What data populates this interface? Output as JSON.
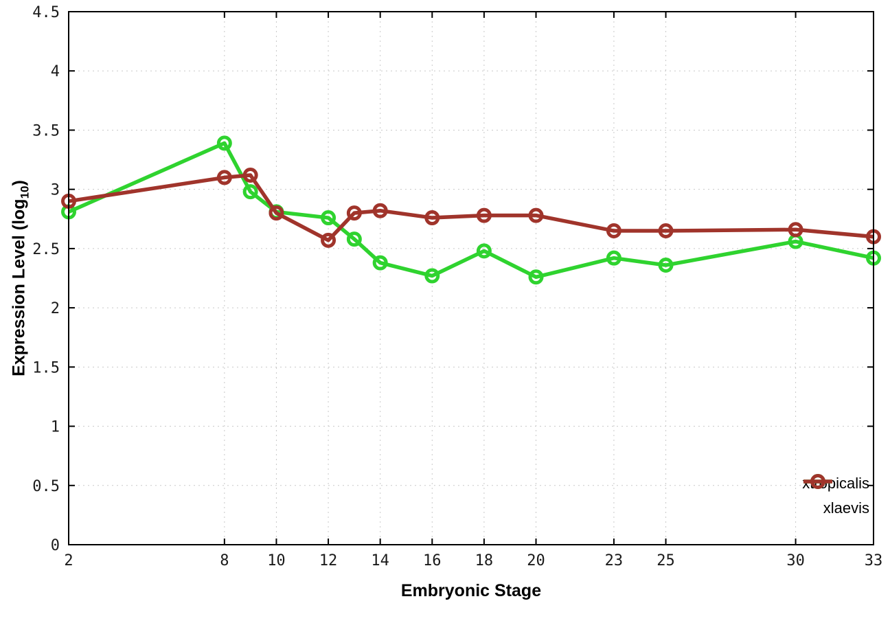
{
  "chart_data": {
    "type": "line",
    "title": "",
    "xlabel": "Embryonic Stage",
    "ylabel": "Expression Level (log10)",
    "ylabel_prefix": "Expression Level (log",
    "ylabel_subscript": "10",
    "ylabel_suffix": ")",
    "xlim": [
      2,
      33
    ],
    "ylim": [
      0,
      4.5
    ],
    "x_ticks": [
      2,
      8,
      10,
      12,
      14,
      16,
      18,
      20,
      23,
      25,
      30,
      33
    ],
    "y_ticks": [
      0,
      0.5,
      1,
      1.5,
      2,
      2.5,
      3,
      3.5,
      4,
      4.5
    ],
    "grid": true,
    "legend_position": "bottom-right",
    "x": [
      2,
      8,
      9,
      10,
      12,
      13,
      14,
      16,
      18,
      20,
      23,
      25,
      30,
      33
    ],
    "series": [
      {
        "name": "xtropicalis",
        "color": "#2fd32f",
        "values": [
          2.81,
          3.39,
          2.98,
          2.81,
          2.76,
          2.58,
          2.38,
          2.27,
          2.48,
          2.26,
          2.42,
          2.36,
          2.56,
          2.42
        ]
      },
      {
        "name": "xlaevis",
        "color": "#a0342b",
        "values": [
          2.9,
          3.1,
          3.12,
          2.8,
          2.57,
          2.8,
          2.82,
          2.76,
          2.78,
          2.78,
          2.65,
          2.65,
          2.66,
          2.6
        ]
      }
    ],
    "colors": {
      "axis": "#000000",
      "grid": "#c8c8c8",
      "background": "#ffffff"
    }
  }
}
